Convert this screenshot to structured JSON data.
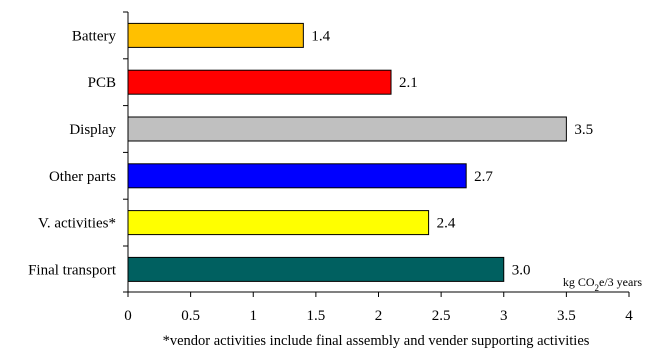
{
  "chart_data": {
    "type": "bar",
    "orientation": "horizontal",
    "categories": [
      "Battery",
      "PCB",
      "Display",
      "Other parts",
      "V. activities*",
      "Final transport"
    ],
    "values": [
      1.4,
      2.1,
      3.5,
      2.7,
      2.4,
      3.0
    ],
    "data_labels": [
      "1.4",
      "2.1",
      "3.5",
      "2.7",
      "2.4",
      "3.0"
    ],
    "colors": [
      "#ffc000",
      "#ff0000",
      "#c0c0c0",
      "#0000ff",
      "#ffff00",
      "#006060"
    ],
    "xlim": [
      0,
      4
    ],
    "x_ticks": [
      "0",
      "0.5",
      "1",
      "1.5",
      "2",
      "2.5",
      "3",
      "3.5",
      "4"
    ],
    "unit_label": {
      "pre": "kg CO",
      "sub": "2",
      "post": "e/3 years"
    },
    "grid": false,
    "footnote": "*vendor activities include final assembly and vender supporting activities"
  }
}
